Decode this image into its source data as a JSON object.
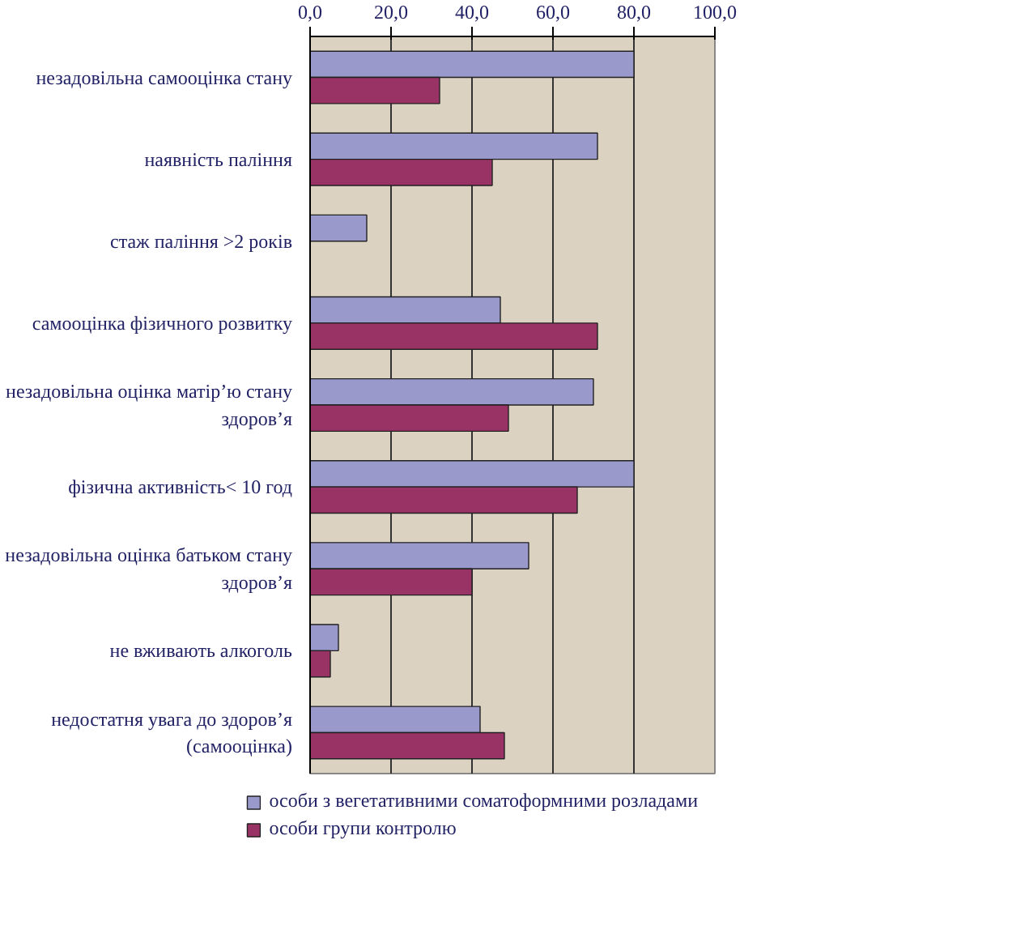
{
  "chart_data": {
    "type": "bar",
    "orientation": "horizontal",
    "categories": [
      "незадовільна самооцінка стану",
      "наявність паління",
      "стаж паління >2 років",
      "самооцінка фізичного розвитку",
      "незадовільна оцінка матір’ю стану здоров’я",
      "фізична активність< 10 год",
      "незадовільна оцінка батьком стану здоров’я",
      "не вживають алкоголь",
      "недостатня увага до здоров’я (самооцінка)"
    ],
    "series": [
      {
        "name": "особи з вегетативними соматоформними розладами",
        "color": "#9999cc",
        "values": [
          80,
          71,
          14,
          47,
          70,
          80,
          54,
          7,
          42
        ]
      },
      {
        "name": "особи групи контролю",
        "color": "#993366",
        "values": [
          32,
          45,
          null,
          71,
          49,
          66,
          40,
          5,
          48
        ]
      }
    ],
    "xlim": [
      0,
      100
    ],
    "xticks": [
      {
        "value": 0,
        "label": "0,0"
      },
      {
        "value": 20,
        "label": "20,0"
      },
      {
        "value": 40,
        "label": "40,0"
      },
      {
        "value": 60,
        "label": "60,0"
      },
      {
        "value": 80,
        "label": "80,0"
      },
      {
        "value": 100,
        "label": "100,0"
      }
    ],
    "grid": "x",
    "legend": "bottom"
  }
}
